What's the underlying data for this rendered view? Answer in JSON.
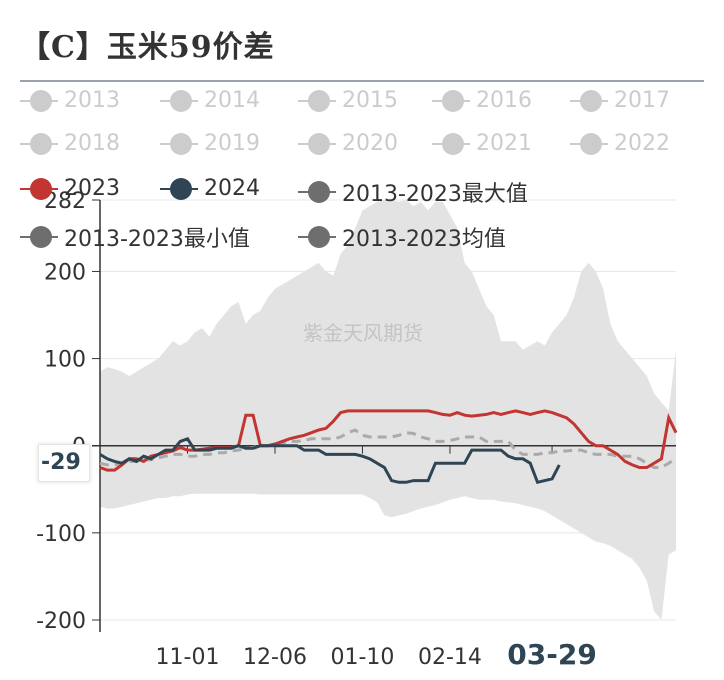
{
  "header": {
    "title": "【C】玉米59价差"
  },
  "legend": [
    {
      "label": "2013",
      "active": false,
      "color": "#cccccc"
    },
    {
      "label": "2014",
      "active": false,
      "color": "#cccccc"
    },
    {
      "label": "2015",
      "active": false,
      "color": "#cccccc"
    },
    {
      "label": "2016",
      "active": false,
      "color": "#cccccc"
    },
    {
      "label": "2017",
      "active": false,
      "color": "#cccccc"
    },
    {
      "label": "2018",
      "active": false,
      "color": "#cccccc"
    },
    {
      "label": "2019",
      "active": false,
      "color": "#cccccc"
    },
    {
      "label": "2020",
      "active": false,
      "color": "#cccccc"
    },
    {
      "label": "2021",
      "active": false,
      "color": "#cccccc"
    },
    {
      "label": "2022",
      "active": false,
      "color": "#cccccc"
    },
    {
      "label": "2023",
      "active": true,
      "color": "#c23531"
    },
    {
      "label": "2024",
      "active": true,
      "color": "#2f4554"
    },
    {
      "label": "2013-2023最大值",
      "active": true,
      "color": "#6e6e6e"
    },
    {
      "label": "2013-2023最小值",
      "active": true,
      "color": "#6e6e6e"
    },
    {
      "label": "2013-2023均值",
      "active": true,
      "color": "#6e6e6e"
    }
  ],
  "watermark": "紫金天风期货",
  "tooltip": {
    "value": "-29"
  },
  "chart_data": {
    "type": "line",
    "y_axis": {
      "min": -200,
      "max": 282,
      "ticks": [
        -200,
        -100,
        0,
        100,
        200,
        282
      ]
    },
    "x_ticks": [
      {
        "label": "11-01",
        "index": 12
      },
      {
        "label": "12-06",
        "index": 24
      },
      {
        "label": "01-10",
        "index": 36
      },
      {
        "label": "02-14",
        "index": 48
      },
      {
        "label": "03-29",
        "index": 62
      }
    ],
    "x_highlight": "03-29",
    "x_count": 80,
    "series": [
      {
        "name": "2023",
        "color": "#c23531",
        "values": [
          -25,
          -28,
          -28,
          -22,
          -15,
          -15,
          -18,
          -12,
          -10,
          -8,
          -6,
          -2,
          -5,
          -5,
          -4,
          -3,
          -2,
          -2,
          -2,
          0,
          35,
          35,
          0,
          0,
          2,
          5,
          8,
          10,
          12,
          15,
          18,
          20,
          28,
          38,
          40,
          40,
          40,
          40,
          40,
          40,
          40,
          40,
          40,
          40,
          40,
          40,
          38,
          36,
          35,
          38,
          35,
          34,
          35,
          36,
          38,
          36,
          38,
          40,
          38,
          36,
          38,
          40,
          38,
          35,
          32,
          25,
          15,
          5,
          0,
          0,
          -5,
          -10,
          -18,
          -22,
          -25,
          -25,
          -20,
          -15,
          32,
          15
        ]
      },
      {
        "name": "2024",
        "color": "#2f4554",
        "values": [
          -10,
          -15,
          -18,
          -20,
          -15,
          -18,
          -12,
          -15,
          -10,
          -5,
          -5,
          5,
          8,
          -5,
          -5,
          -5,
          -3,
          -3,
          -3,
          0,
          -3,
          -3,
          0,
          0,
          0,
          0,
          0,
          0,
          -5,
          -5,
          -5,
          -10,
          -10,
          -10,
          -10,
          -10,
          -12,
          -15,
          -20,
          -25,
          -40,
          -42,
          -42,
          -40,
          -40,
          -40,
          -20,
          -20,
          -20,
          -20,
          -20,
          -5,
          -5,
          -5,
          -5,
          -5,
          -12,
          -15,
          -15,
          -20,
          -42,
          -40,
          -38,
          -22
        ]
      },
      {
        "name": "2013-2023最大值",
        "color": "#dddddd",
        "values": [
          85,
          90,
          88,
          85,
          80,
          85,
          90,
          95,
          100,
          110,
          120,
          115,
          120,
          130,
          135,
          125,
          140,
          150,
          160,
          165,
          140,
          150,
          155,
          170,
          180,
          185,
          190,
          195,
          200,
          205,
          210,
          200,
          195,
          220,
          230,
          250,
          270,
          275,
          280,
          282,
          282,
          280,
          282,
          275,
          280,
          270,
          280,
          280,
          265,
          250,
          210,
          200,
          180,
          160,
          150,
          120,
          120,
          120,
          110,
          115,
          120,
          115,
          130,
          140,
          150,
          170,
          200,
          210,
          200,
          180,
          140,
          120,
          110,
          100,
          90,
          80,
          60,
          50,
          40,
          110
        ]
      },
      {
        "name": "2013-2023最小值",
        "color": "#dddddd",
        "values": [
          -70,
          -72,
          -72,
          -70,
          -68,
          -66,
          -64,
          -62,
          -60,
          -60,
          -58,
          -58,
          -56,
          -55,
          -55,
          -55,
          -55,
          -55,
          -55,
          -55,
          -55,
          -55,
          -56,
          -56,
          -56,
          -56,
          -56,
          -56,
          -56,
          -56,
          -56,
          -56,
          -56,
          -56,
          -56,
          -56,
          -56,
          -60,
          -65,
          -80,
          -82,
          -80,
          -78,
          -75,
          -72,
          -70,
          -68,
          -65,
          -62,
          -60,
          -58,
          -60,
          -62,
          -62,
          -62,
          -64,
          -65,
          -66,
          -68,
          -70,
          -72,
          -75,
          -80,
          -85,
          -90,
          -95,
          -100,
          -105,
          -110,
          -112,
          -115,
          -120,
          -125,
          -130,
          -140,
          -155,
          -190,
          -200,
          -125,
          -120
        ]
      },
      {
        "name": "2013-2023均值",
        "color": "#aaaaaa",
        "values": [
          -20,
          -22,
          -22,
          -20,
          -18,
          -18,
          -16,
          -16,
          -14,
          -12,
          -10,
          -10,
          -12,
          -12,
          -10,
          -10,
          -8,
          -8,
          -6,
          -5,
          -3,
          -2,
          0,
          0,
          2,
          3,
          5,
          5,
          6,
          8,
          8,
          8,
          8,
          10,
          15,
          18,
          12,
          10,
          10,
          10,
          10,
          12,
          15,
          14,
          10,
          8,
          5,
          5,
          6,
          8,
          10,
          10,
          10,
          5,
          5,
          5,
          5,
          -5,
          -10,
          -10,
          -10,
          -8,
          -8,
          -6,
          -6,
          -5,
          -5,
          -8,
          -10,
          -10,
          -10,
          -12,
          -12,
          -12,
          -15,
          -20,
          -25,
          -25,
          -20,
          -15
        ]
      }
    ]
  }
}
